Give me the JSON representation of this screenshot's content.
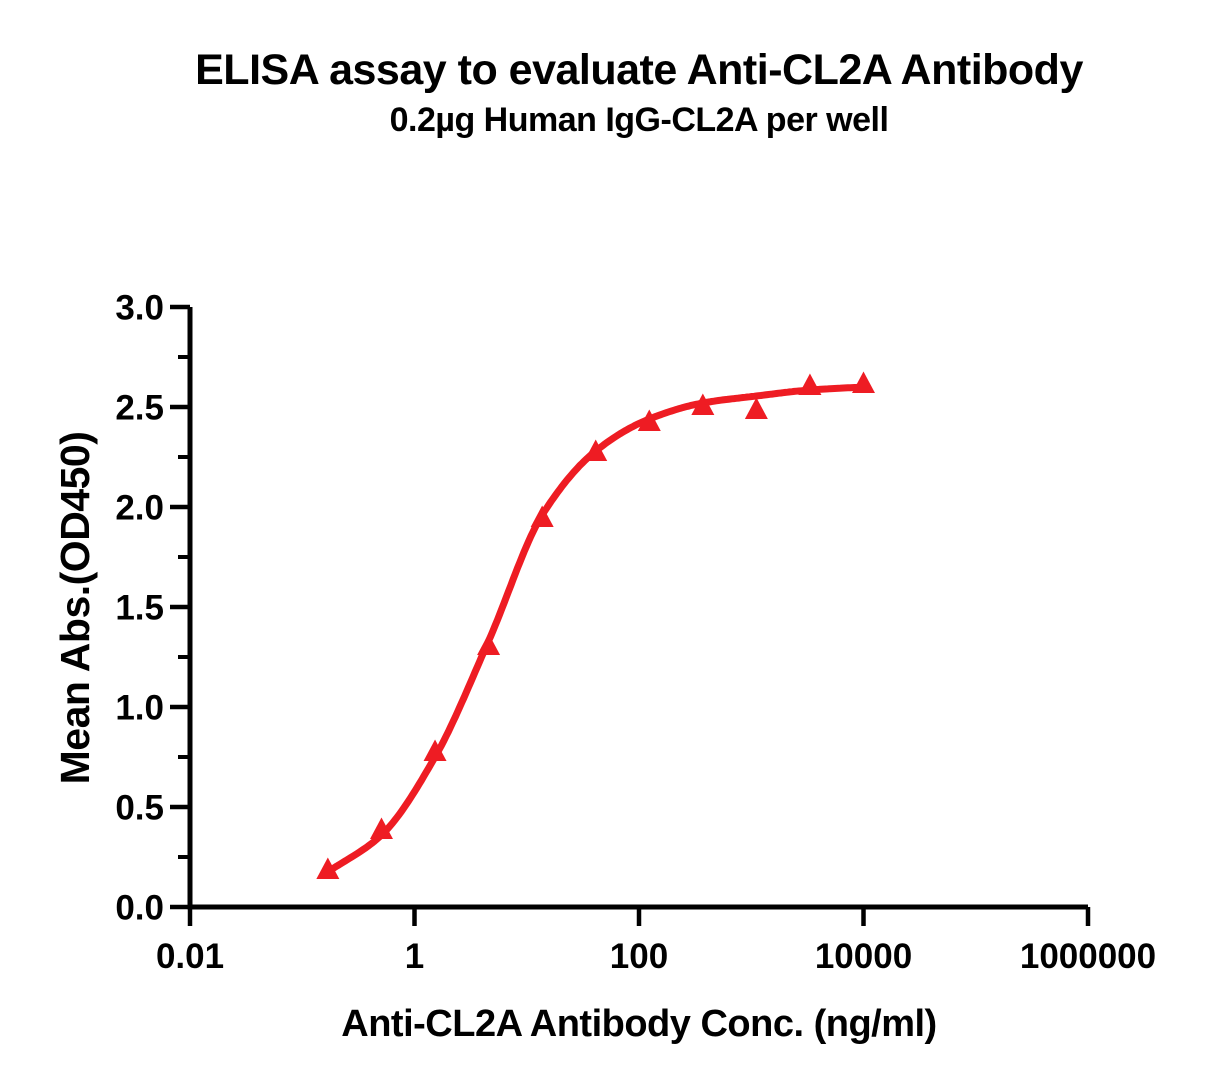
{
  "title": "ELISA assay to evaluate Anti-CL2A Antibody",
  "subtitle": "0.2µg Human IgG-CL2A per well",
  "colors": {
    "background": "#FFFFFF",
    "axis": "#000000",
    "text": "#000000",
    "series_red": "#EE1C23"
  },
  "chart_data": {
    "type": "scatter",
    "title": "ELISA assay to evaluate Anti-CL2A Antibody",
    "subtitle": "0.2µg Human IgG-CL2A per well",
    "xlabel": "Anti-CL2A Antibody Conc. (ng/ml)",
    "ylabel": "Mean Abs.(OD450)",
    "x_scale": "log10",
    "xlim_log10": [
      -2,
      6
    ],
    "ylim": [
      0,
      3
    ],
    "grid": "off",
    "legend": "none",
    "x_ticks": [
      {
        "value": 0.01,
        "label": "0.01"
      },
      {
        "value": 1,
        "label": "1"
      },
      {
        "value": 100,
        "label": "100"
      },
      {
        "value": 10000,
        "label": "10000"
      },
      {
        "value": 1000000,
        "label": "1000000"
      }
    ],
    "y_ticks": [
      {
        "value": 0.0,
        "label": "0.0"
      },
      {
        "value": 0.5,
        "label": "0.5"
      },
      {
        "value": 1.0,
        "label": "1.0"
      },
      {
        "value": 1.5,
        "label": "1.5"
      },
      {
        "value": 2.0,
        "label": "2.0"
      },
      {
        "value": 2.5,
        "label": "2.5"
      },
      {
        "value": 3.0,
        "label": "3.0"
      }
    ],
    "y_minor_ticks": [
      0.25,
      0.75,
      1.25,
      1.75,
      2.25,
      2.75
    ],
    "series": [
      {
        "marker": "triangle-up",
        "color": "#EE1C23",
        "points": [
          {
            "x": 0.169,
            "y": 0.19
          },
          {
            "x": 0.508,
            "y": 0.39
          },
          {
            "x": 1.524,
            "y": 0.78
          },
          {
            "x": 4.572,
            "y": 1.31
          },
          {
            "x": 13.72,
            "y": 1.95
          },
          {
            "x": 41.15,
            "y": 2.28
          },
          {
            "x": 123.5,
            "y": 2.43
          },
          {
            "x": 370.4,
            "y": 2.51
          },
          {
            "x": 1111,
            "y": 2.49
          },
          {
            "x": 3333,
            "y": 2.61
          },
          {
            "x": 10000,
            "y": 2.62
          }
        ]
      }
    ],
    "fit_curve": [
      {
        "x": 0.169,
        "y": 0.175
      },
      {
        "x": 0.508,
        "y": 0.36
      },
      {
        "x": 1.524,
        "y": 0.75
      },
      {
        "x": 4.572,
        "y": 1.33
      },
      {
        "x": 13.72,
        "y": 1.96
      },
      {
        "x": 41.15,
        "y": 2.28
      },
      {
        "x": 123.5,
        "y": 2.44
      },
      {
        "x": 370.4,
        "y": 2.52
      },
      {
        "x": 1111,
        "y": 2.555
      },
      {
        "x": 3333,
        "y": 2.585
      },
      {
        "x": 10000,
        "y": 2.6
      }
    ]
  }
}
